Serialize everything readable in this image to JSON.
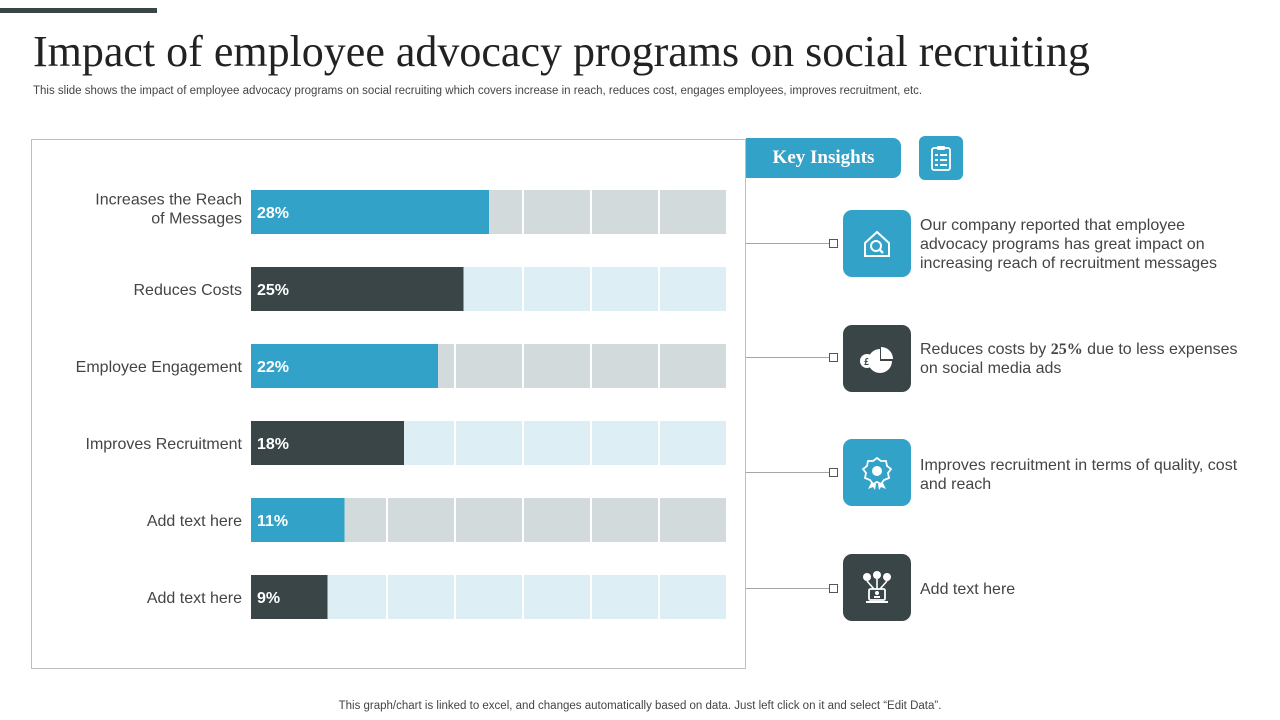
{
  "slide": {
    "title": "Impact of employee advocacy programs on social recruiting",
    "subtitle": "This slide shows the impact of employee advocacy programs on social recruiting which covers increase in reach, reduces cost, engages employees, improves recruitment, etc.",
    "footer": "This graph/chart is linked to excel,  and changes automatically based on data. Just left click on it and select “Edit Data”."
  },
  "chart_data": {
    "type": "bar",
    "orientation": "horizontal",
    "categories": [
      [
        "Increases the Reach",
        "of Messages"
      ],
      [
        "Reduces Costs"
      ],
      [
        "Employee Engagement"
      ],
      [
        "Improves Recruitment"
      ],
      [
        "Add text here"
      ],
      [
        "Add text here"
      ]
    ],
    "values": [
      28,
      25,
      22,
      18,
      11,
      9
    ],
    "value_labels": [
      "28%",
      "25%",
      "22%",
      "18%",
      "11%",
      "9%"
    ],
    "xlim": [
      0,
      56
    ],
    "grid_segments": 7,
    "colors": [
      "#33a2c8",
      "#3a4548",
      "#33a2c8",
      "#3a4548",
      "#33a2c8",
      "#3a4548"
    ],
    "track_colors": [
      "#d3dadb",
      "#ddeef5",
      "#d3dadb",
      "#ddeef5",
      "#d3dadb",
      "#ddeef5"
    ],
    "title": "",
    "xlabel": "",
    "ylabel": ""
  },
  "insights": {
    "header": "Key Insights",
    "header_icon": "clipboard-icon",
    "items": [
      {
        "icon": "house-search-icon",
        "style": "blue",
        "text_before": "Our company reported that employee advocacy programs has great impact on increasing reach of recruitment messages",
        "highlight": "",
        "text_after": ""
      },
      {
        "icon": "coin-pie-chart-icon",
        "style": "dark",
        "text_before": "Reduces costs by ",
        "highlight": "25%",
        "text_after": " due to less expenses on social media ads"
      },
      {
        "icon": "badge-icon",
        "style": "blue",
        "text_before": "Improves recruitment in terms of quality, cost and reach",
        "highlight": "",
        "text_after": ""
      },
      {
        "icon": "network-icon",
        "style": "dark",
        "text_before": "Add text here",
        "highlight": "",
        "text_after": ""
      }
    ]
  },
  "colors": {
    "accent": "#33a2c8",
    "dark": "#3a4548"
  }
}
